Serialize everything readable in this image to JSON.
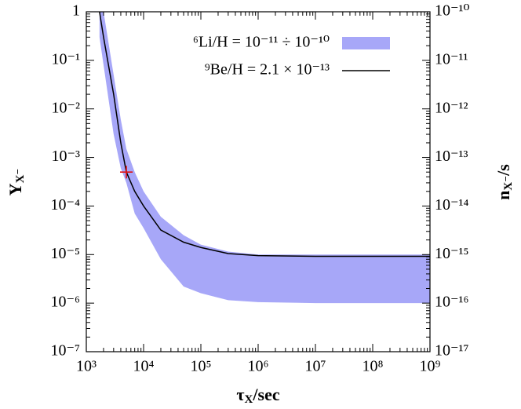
{
  "chart_data": {
    "type": "line",
    "xlabel": {
      "symbol": "τ",
      "subscript": "X",
      "unit": "/sec"
    },
    "ylabel": {
      "symbol": "Y",
      "subscript": "X⁻"
    },
    "y2label": {
      "symbol": "n",
      "subscript": "X⁻",
      "unit": "/s"
    },
    "log_x": true,
    "log_y": true,
    "xlim": [
      1000,
      1000000000
    ],
    "xticks": [
      {
        "value": 1000,
        "label": "10³"
      },
      {
        "value": 10000,
        "label": "10⁴"
      },
      {
        "value": 100000,
        "label": "10⁵"
      },
      {
        "value": 1000000,
        "label": "10⁶"
      },
      {
        "value": 10000000,
        "label": "10⁷"
      },
      {
        "value": 100000000,
        "label": "10⁸"
      },
      {
        "value": 1000000000,
        "label": "10⁹"
      }
    ],
    "ylim": [
      1e-07,
      1
    ],
    "yticks": [
      {
        "value": 1e-07,
        "label": "10⁻⁷"
      },
      {
        "value": 1e-06,
        "label": "10⁻⁶"
      },
      {
        "value": 1e-05,
        "label": "10⁻⁵"
      },
      {
        "value": 0.0001,
        "label": "10⁻⁴"
      },
      {
        "value": 0.001,
        "label": "10⁻³"
      },
      {
        "value": 0.01,
        "label": "10⁻²"
      },
      {
        "value": 0.1,
        "label": "10⁻¹"
      },
      1
    ],
    "y2lim": [
      1e-17,
      1e-10
    ],
    "y2ticks": [
      {
        "value": 1e-17,
        "label": "10⁻¹⁷"
      },
      {
        "value": 1e-16,
        "label": "10⁻¹⁶"
      },
      {
        "value": 1e-15,
        "label": "10⁻¹⁵"
      },
      {
        "value": 1e-14,
        "label": "10⁻¹⁴"
      },
      {
        "value": 1e-13,
        "label": "10⁻¹³"
      },
      {
        "value": 1e-12,
        "label": "10⁻¹²"
      },
      {
        "value": 1e-11,
        "label": "10⁻¹¹"
      },
      {
        "value": 1e-10,
        "label": "10⁻¹⁰"
      }
    ],
    "x": [
      1700,
      2000,
      3000,
      4000,
      5000,
      7000,
      10000,
      20000,
      50000,
      100000,
      300000,
      1000000,
      10000000,
      1000000000
    ],
    "series": [
      {
        "name": "⁶Li/H = 10⁻¹¹ ÷ 10⁻¹⁰",
        "type": "band",
        "color": "#a7a7f8",
        "upper": [
          1,
          1,
          0.05,
          0.006,
          0.0015,
          0.0005,
          0.0002,
          6e-05,
          2.5e-05,
          1.6e-05,
          1.15e-05,
          1e-05,
          1e-05,
          1e-05
        ],
        "lower": [
          0.3,
          0.08,
          0.003,
          0.0006,
          0.0003,
          7e-05,
          3.5e-05,
          8e-06,
          2.2e-06,
          1.6e-06,
          1.15e-06,
          1.05e-06,
          1e-06,
          1e-06
        ]
      },
      {
        "name": "⁹Be/H = 2.1 × 10⁻¹³",
        "type": "line",
        "color": "#000000",
        "values": [
          1,
          0.3,
          0.02,
          0.002,
          0.0005,
          0.0002,
          0.0001,
          3.2e-05,
          1.8e-05,
          1.4e-05,
          1.05e-05,
          9.5e-06,
          9.2e-06,
          9.2e-06
        ]
      }
    ],
    "marker": {
      "x": 5000,
      "y": 0.0005,
      "color": "#dd1111"
    }
  }
}
